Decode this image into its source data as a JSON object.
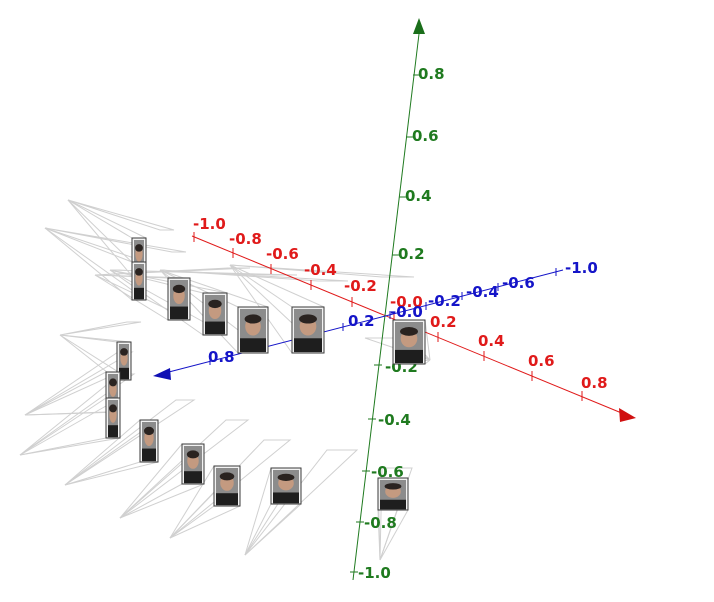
{
  "scene": {
    "background": "#ffffff",
    "camera_frustum_color": "#d0d0d0",
    "photo_frame_color": "#3a3a3a",
    "camera_count": 20
  },
  "axes": {
    "x": {
      "color": "#e01a1a",
      "tick_labels": [
        "-1.0",
        "-0.8",
        "-0.6",
        "-0.4",
        "-0.2",
        "-0.0",
        "0.2",
        "0.4",
        "0.6",
        "0.8"
      ]
    },
    "y": {
      "color": "#1f7a1f",
      "tick_labels": [
        "-1.0",
        "-0.8",
        "-0.6",
        "-0.4",
        "-0.2",
        "0.2",
        "0.4",
        "0.6",
        "0.8"
      ]
    },
    "z": {
      "color": "#1414c8",
      "tick_labels": [
        "-1.0",
        "-0.6",
        "-0.4",
        "-0.2",
        "-0.0",
        "0.2",
        "0.8"
      ]
    }
  }
}
